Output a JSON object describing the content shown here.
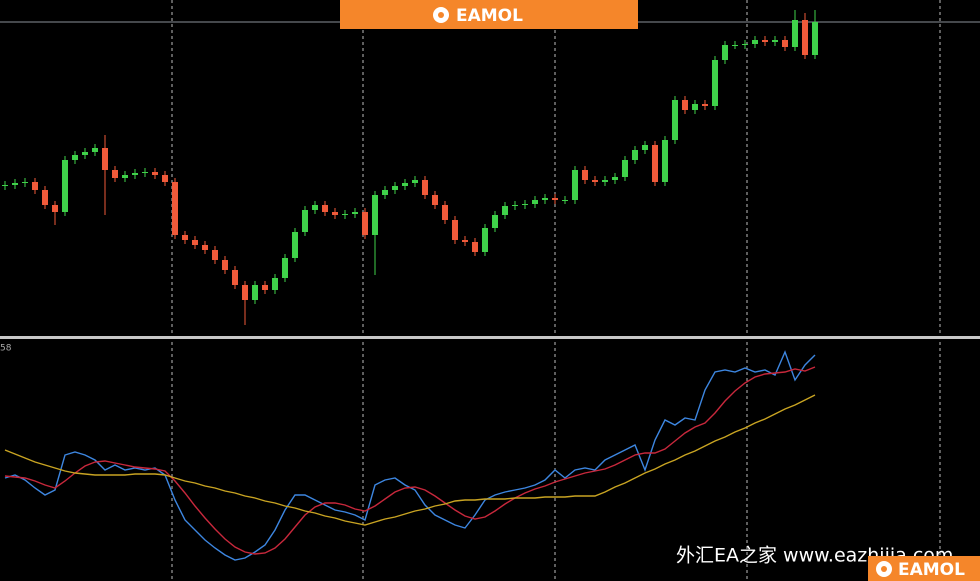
{
  "chart_data": [
    {
      "type": "candlestick",
      "ylim": [
        0,
        335
      ],
      "up_color": "#3fd24a",
      "down_color": "#f05a3a",
      "open": [
        149,
        150,
        152,
        153,
        145,
        130,
        123,
        175,
        180,
        183,
        187,
        165,
        157,
        160,
        162,
        163,
        160,
        153,
        100,
        95,
        90,
        85,
        75,
        65,
        50,
        35,
        50,
        45,
        57,
        77,
        103,
        125,
        130,
        123,
        120,
        121,
        123,
        100,
        140,
        145,
        149,
        152,
        155,
        140,
        130,
        115,
        95,
        93,
        83,
        107,
        120,
        129,
        130,
        131,
        135,
        137,
        135,
        135,
        165,
        155,
        153,
        155,
        158,
        175,
        185,
        190,
        153,
        195,
        235,
        225,
        231,
        229,
        275,
        290,
        290,
        291,
        295,
        293,
        295,
        288,
        315,
        280
      ],
      "high": [
        154,
        156,
        157,
        157,
        149,
        134,
        179,
        184,
        187,
        191,
        200,
        169,
        164,
        166,
        167,
        167,
        164,
        157,
        104,
        99,
        94,
        89,
        79,
        69,
        54,
        54,
        54,
        61,
        81,
        107,
        129,
        134,
        134,
        127,
        125,
        127,
        127,
        144,
        149,
        153,
        156,
        159,
        159,
        144,
        134,
        119,
        99,
        97,
        111,
        124,
        133,
        134,
        135,
        139,
        141,
        141,
        139,
        169,
        169,
        159,
        159,
        162,
        179,
        189,
        194,
        194,
        199,
        239,
        239,
        235,
        235,
        279,
        294,
        294,
        295,
        299,
        299,
        299,
        299,
        325,
        322,
        325
      ],
      "low": [
        145,
        146,
        148,
        141,
        126,
        110,
        119,
        171,
        176,
        179,
        120,
        153,
        153,
        156,
        158,
        156,
        149,
        96,
        91,
        86,
        81,
        71,
        61,
        46,
        10,
        31,
        41,
        41,
        53,
        73,
        99,
        121,
        119,
        116,
        116,
        117,
        96,
        60,
        136,
        141,
        145,
        148,
        136,
        126,
        111,
        91,
        89,
        79,
        79,
        103,
        116,
        125,
        126,
        127,
        131,
        131,
        131,
        131,
        151,
        149,
        149,
        151,
        154,
        171,
        181,
        149,
        149,
        191,
        221,
        221,
        225,
        225,
        271,
        286,
        286,
        287,
        289,
        289,
        284,
        284,
        276,
        276
      ],
      "close": [
        150,
        152,
        153,
        145,
        130,
        123,
        175,
        180,
        183,
        187,
        165,
        157,
        160,
        162,
        163,
        160,
        153,
        100,
        95,
        90,
        85,
        75,
        65,
        50,
        35,
        50,
        45,
        57,
        77,
        103,
        125,
        130,
        123,
        120,
        121,
        123,
        100,
        140,
        145,
        149,
        152,
        155,
        140,
        130,
        115,
        95,
        93,
        83,
        107,
        120,
        129,
        130,
        131,
        135,
        137,
        135,
        135,
        165,
        155,
        153,
        155,
        158,
        175,
        185,
        190,
        153,
        195,
        235,
        225,
        231,
        229,
        275,
        290,
        290,
        291,
        295,
        293,
        295,
        288,
        315,
        280,
        313
      ]
    },
    {
      "type": "line",
      "label": "58",
      "ylim": [
        0,
        241
      ],
      "series": [
        {
          "color": "#3d86e0",
          "values": [
            103,
            106,
            101,
            93,
            86,
            91,
            126,
            129,
            126,
            121,
            111,
            116,
            111,
            113,
            111,
            113,
            106,
            81,
            61,
            51,
            41,
            33,
            26,
            21,
            23,
            29,
            36,
            51,
            71,
            86,
            86,
            81,
            76,
            71,
            69,
            66,
            61,
            96,
            101,
            103,
            96,
            91,
            76,
            66,
            61,
            56,
            53,
            66,
            81,
            86,
            89,
            91,
            93,
            96,
            101,
            111,
            103,
            111,
            113,
            111,
            121,
            126,
            131,
            136,
            111,
            141,
            161,
            156,
            163,
            161,
            191,
            209,
            211,
            209,
            213,
            209,
            211,
            206,
            229,
            201,
            216,
            226
          ]
        },
        {
          "color": "#c8283c",
          "values": [
            105,
            104,
            103,
            100,
            96,
            93,
            100,
            108,
            115,
            119,
            120,
            118,
            116,
            114,
            113,
            112,
            110,
            100,
            88,
            75,
            63,
            52,
            42,
            34,
            29,
            27,
            28,
            33,
            42,
            54,
            66,
            74,
            78,
            78,
            76,
            72,
            70,
            75,
            82,
            89,
            93,
            94,
            91,
            85,
            78,
            71,
            65,
            62,
            64,
            70,
            77,
            83,
            88,
            92,
            95,
            99,
            102,
            105,
            108,
            110,
            112,
            116,
            121,
            126,
            128,
            128,
            132,
            140,
            148,
            154,
            158,
            168,
            180,
            190,
            198,
            204,
            207,
            208,
            209,
            212,
            210,
            214
          ]
        },
        {
          "color": "#c9a422",
          "values": [
            131,
            127,
            123,
            119,
            116,
            113,
            110,
            108,
            107,
            106,
            106,
            106,
            106,
            107,
            107,
            107,
            106,
            103,
            100,
            98,
            95,
            93,
            90,
            88,
            85,
            83,
            80,
            78,
            75,
            73,
            70,
            68,
            65,
            63,
            60,
            58,
            56,
            59,
            62,
            64,
            67,
            70,
            72,
            75,
            77,
            80,
            81,
            81,
            82,
            82,
            82,
            83,
            83,
            83,
            84,
            84,
            84,
            85,
            85,
            85,
            89,
            94,
            98,
            103,
            108,
            112,
            117,
            121,
            126,
            130,
            135,
            140,
            144,
            149,
            153,
            158,
            162,
            167,
            172,
            176,
            181,
            186
          ]
        }
      ]
    }
  ],
  "banner": "EAMOL",
  "watermark": "外汇EA之家 www.eazhijia.com",
  "badge": "EAMOL"
}
